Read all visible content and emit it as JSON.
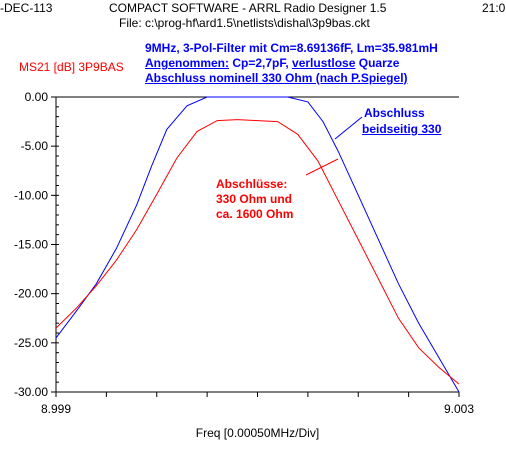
{
  "header": {
    "date_fragment": "-DEC-113",
    "app_title": "COMPACT SOFTWARE - ARRL Radio Designer 1.5",
    "time_fragment": "21:0",
    "file_line": "File: c:\\prog-hf\\ard1.5\\netlists\\dishal\\3p9bas.ckt"
  },
  "trace_label": "MS21 [dB] 3P9BAS",
  "description": {
    "line1": "9MHz, 3-Pol-Filter mit Cm=8.69136fF, Lm=35.981mH",
    "line2_u1": "Angenommen:",
    "line2_mid": " Cp=2,7pF, ",
    "line2_u2": "verlustlose",
    "line2_end": " Quarze",
    "line3": "Abschluss nominell 330 Ohm (nach P.Spiegel)"
  },
  "annotations": {
    "blue_line1": "Abschluss",
    "blue_line2": "beidseitig 330",
    "red_line1": "Abschlüsse:",
    "red_line2": "330 Ohm und",
    "red_line3": "ca. 1600 Ohm"
  },
  "colors": {
    "blue_trace": "#0000ff",
    "red_trace": "#ff0000",
    "axis": "#000000"
  },
  "chart_data": {
    "type": "line",
    "title": "",
    "xlabel": "Freq [0.00050MHz/Div]",
    "ylabel": "MS21 [dB] 3P9BAS",
    "x_tick_labels": [
      "8.999",
      "9.003"
    ],
    "y_tick_labels": [
      "0.00",
      "-5.00",
      "-10.00",
      "-15.00",
      "-20.00",
      "-25.00",
      "-30.00"
    ],
    "xlim": [
      8.999,
      9.003
    ],
    "ylim": [
      -30,
      0
    ],
    "grid": false,
    "series": [
      {
        "name": "Abschluss beidseitig 330",
        "color": "#0000ff",
        "x": [
          8.999,
          8.9992,
          8.9994,
          8.9996,
          8.9998,
          8.99995,
          9.0001,
          9.0003,
          9.0005,
          9.0007,
          9.0009,
          9.0011,
          9.0012,
          9.0013,
          9.0015,
          9.00165,
          9.0018,
          9.002,
          9.0022,
          9.0024,
          9.0026,
          9.0028,
          9.003
        ],
        "values": [
          -24.5,
          -21.8,
          -19.0,
          -15.4,
          -11.0,
          -7.0,
          -3.3,
          -0.9,
          0.0,
          0.0,
          0.0,
          0.0,
          0.0,
          0.0,
          -0.5,
          -2.5,
          -5.5,
          -10.0,
          -14.5,
          -19.0,
          -23.0,
          -26.5,
          -30.0
        ]
      },
      {
        "name": "Abschlüsse: 330 Ohm und ca. 1600 Ohm",
        "color": "#ff0000",
        "x": [
          8.999,
          8.9992,
          8.9994,
          8.9996,
          8.9998,
          9.0,
          9.0002,
          9.0004,
          9.0006,
          9.0008,
          9.001,
          9.0012,
          9.0014,
          9.0016,
          9.0018,
          9.002,
          9.0022,
          9.0024,
          9.0026,
          9.0028,
          9.003
        ],
        "values": [
          -23.5,
          -21.5,
          -19.2,
          -16.6,
          -13.5,
          -9.9,
          -6.2,
          -3.5,
          -2.4,
          -2.3,
          -2.4,
          -2.5,
          -3.8,
          -6.5,
          -10.5,
          -14.5,
          -18.5,
          -22.5,
          -25.5,
          -27.5,
          -29.2
        ]
      }
    ]
  }
}
